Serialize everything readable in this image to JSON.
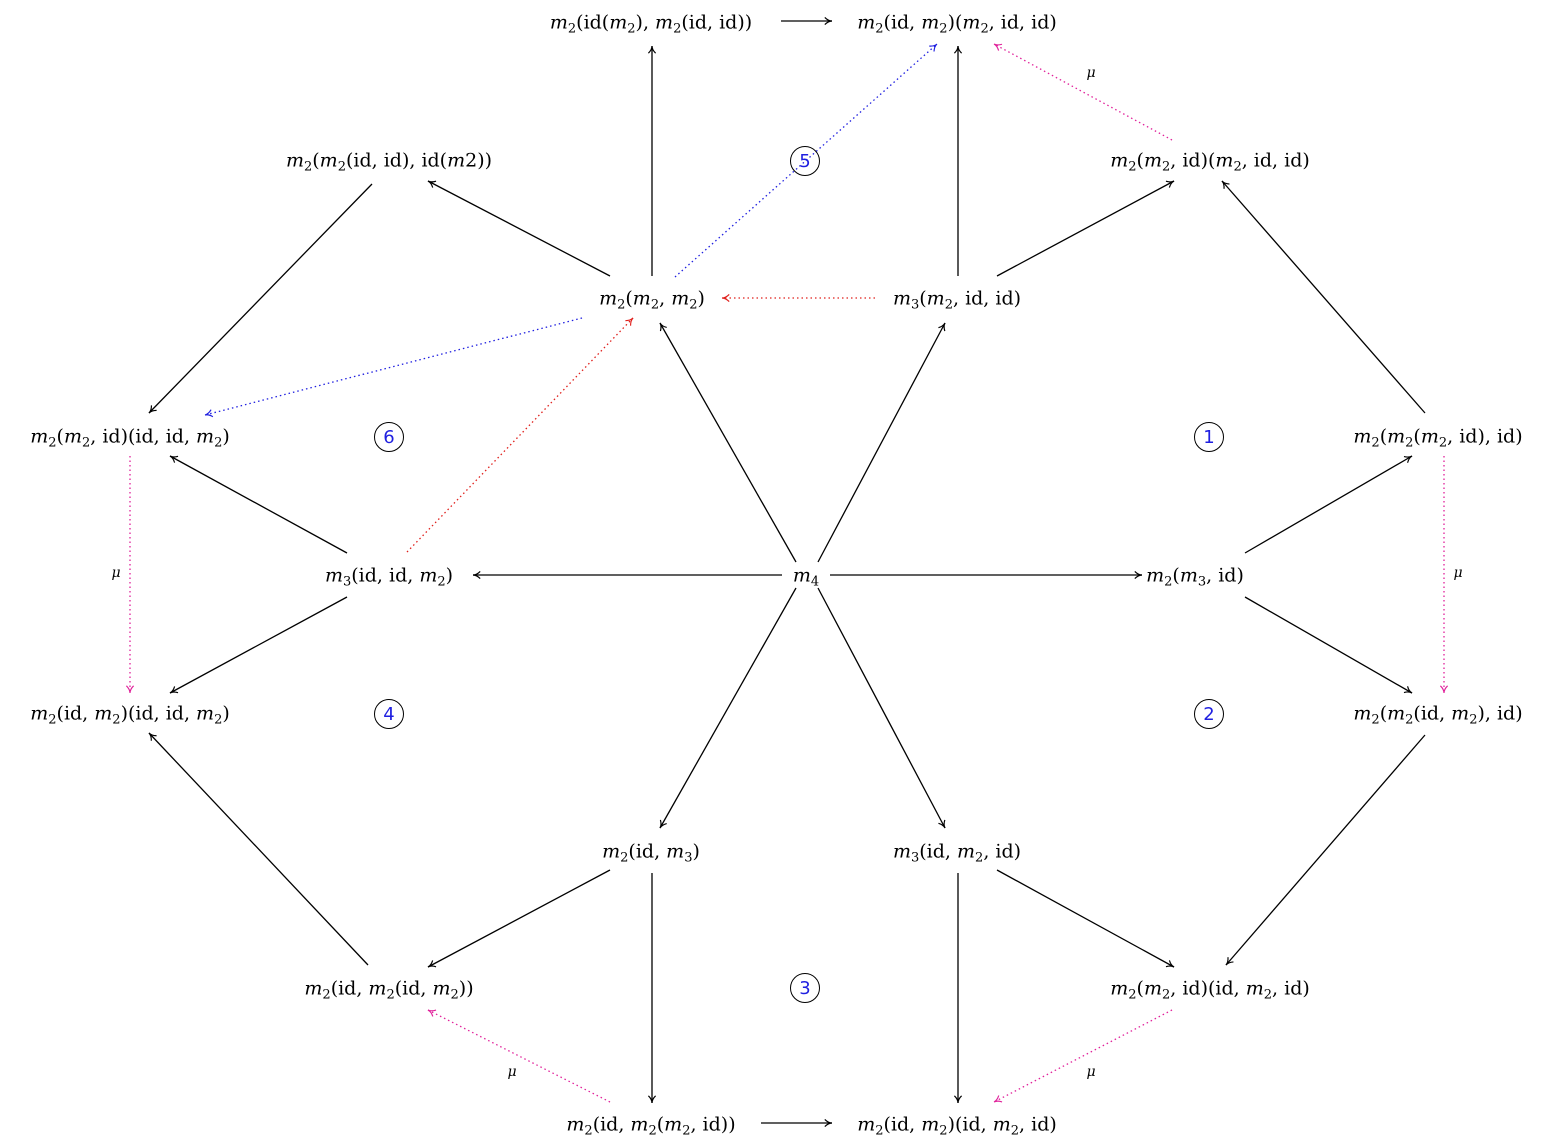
{
  "diagram": {
    "nodes": [
      {
        "id": "m4",
        "label": "m4"
      },
      {
        "id": "m2m3id",
        "label": "m2(m3,id)"
      },
      {
        "id": "m3m2idid",
        "label": "m3(m2,id,id)"
      },
      {
        "id": "m2m2m2",
        "label": "m2(m2,m2)"
      },
      {
        "id": "m3ididm2",
        "label": "m3(id,id,m2)"
      },
      {
        "id": "m2idm3",
        "label": "m2(id,m3)"
      },
      {
        "id": "m3idm2id",
        "label": "m3(id,m2,id)"
      },
      {
        "id": "top_left",
        "label": "m2(id(m2),m2(id,id))"
      },
      {
        "id": "top_right",
        "label": "m2(id,m2)(m2,id,id)"
      },
      {
        "id": "upper_right",
        "label": "m2(m2,id)(m2,id,id)"
      },
      {
        "id": "right_top",
        "label": "m2(m2(m2,id),id)"
      },
      {
        "id": "right_bottom",
        "label": "m2(m2(id,m2),id)"
      },
      {
        "id": "lower_right",
        "label": "m2(m2,id)(id,m2,id)"
      },
      {
        "id": "bottom_right",
        "label": "m2(id,m2)(id,m2,id)"
      },
      {
        "id": "bottom_left",
        "label": "m2(id,m2(m2,id))"
      },
      {
        "id": "lower_left",
        "label": "m2(id,m2(id,m2))"
      },
      {
        "id": "left_bottom",
        "label": "m2(id,m2)(id,id,m2)"
      },
      {
        "id": "left_top",
        "label": "m2(m2,id)(id,id,m2)"
      },
      {
        "id": "upper_left",
        "label": "m2(m2(id,id),id(m2))"
      }
    ],
    "cells": [
      "1",
      "2",
      "3",
      "4",
      "5",
      "6"
    ],
    "mu_label": "μ",
    "colors": {
      "solid": "#000000",
      "red": "#e0201c",
      "blue": "#1f1fe0",
      "magenta": "#e0209a"
    }
  }
}
